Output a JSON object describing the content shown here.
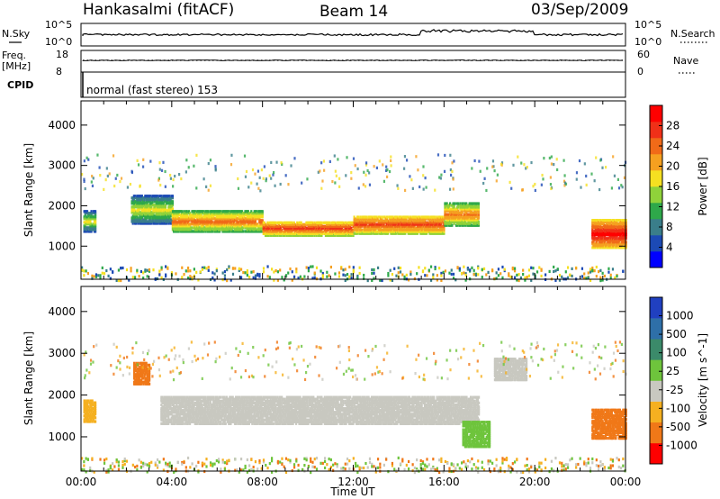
{
  "header": {
    "station": "Hankasalmi (fitACF)",
    "beam": "Beam 14",
    "date": "03/Sep/2009"
  },
  "top_panels": {
    "noise_left_label": "N.Sky",
    "noise_right_label": "N.Search",
    "noise_ticks_left": [
      "10^5",
      "10^0"
    ],
    "noise_ticks_right": [
      "10^5",
      "10^0"
    ],
    "freq_label_1": "Freq.",
    "freq_label_2": "[MHz]",
    "freq_ticks_left": [
      "18",
      "8"
    ],
    "freq_ticks_right": [
      "60",
      "0"
    ],
    "nave_label": "Nave",
    "cpid_label": "CPID",
    "cpid_text": "normal (fast stereo) 153"
  },
  "x_axis": {
    "ticks": [
      "00:00",
      "04:00",
      "08:00",
      "12:00",
      "16:00",
      "20:00",
      "00:00"
    ],
    "title": "Time UT"
  },
  "power_panel": {
    "ylabel": "Slant Range [km]",
    "yticks": [
      "4000",
      "3000",
      "2000",
      "1000"
    ],
    "colorbar_label": "Power [dB]",
    "colorbar_ticks": [
      "28",
      "24",
      "20",
      "16",
      "12",
      "8",
      "4"
    ],
    "colors": [
      "#0000ff",
      "#1c4ab5",
      "#3a7e8a",
      "#2ea84a",
      "#8fd23a",
      "#f5e021",
      "#f5a020",
      "#f06a18",
      "#f03018",
      "#ff0000"
    ]
  },
  "velocity_panel": {
    "ylabel": "Slant Range [km]",
    "yticks": [
      "4000",
      "3000",
      "2000",
      "1000"
    ],
    "colorbar_label": "Velocity [m s^-1]",
    "colorbar_ticks": [
      "1000",
      "500",
      "100",
      "25",
      "-25",
      "-100",
      "-500",
      "-1000"
    ],
    "colors": [
      "#2040c0",
      "#2e6fa8",
      "#3b8a6a",
      "#6ec43c",
      "#c8c8c0",
      "#f5b020",
      "#f07818",
      "#ff0000"
    ]
  },
  "chart_data": {
    "type": "heatmap",
    "x_range_hours": [
      0,
      24
    ],
    "y_range_km": [
      180,
      4600
    ],
    "power_scatter_bands": [
      {
        "t0": 0.1,
        "t1": 0.6,
        "r0": 1400,
        "r1": 1900,
        "db": 14
      },
      {
        "t0": 2.2,
        "t1": 4.0,
        "r0": 1600,
        "r1": 2300,
        "db": 16
      },
      {
        "t0": 4.0,
        "t1": 8.0,
        "r0": 1400,
        "r1": 1900,
        "db": 20
      },
      {
        "t0": 8.0,
        "t1": 12.0,
        "r0": 1300,
        "r1": 1650,
        "db": 24
      },
      {
        "t0": 12.0,
        "t1": 16.0,
        "r0": 1350,
        "r1": 1800,
        "db": 24
      },
      {
        "t0": 16.0,
        "t1": 17.5,
        "r0": 1550,
        "r1": 2100,
        "db": 20
      },
      {
        "t0": 22.5,
        "t1": 24.0,
        "r0": 1000,
        "r1": 1700,
        "db": 28
      }
    ],
    "velocity_scatter_bands": [
      {
        "t0": 0.1,
        "t1": 0.6,
        "r0": 1400,
        "r1": 1900,
        "v": -100
      },
      {
        "t0": 2.3,
        "t1": 3.0,
        "r0": 2300,
        "r1": 2800,
        "v": -300
      },
      {
        "t0": 3.5,
        "t1": 17.5,
        "r0": 1350,
        "r1": 2000,
        "v": 0
      },
      {
        "t0": 18.2,
        "t1": 19.6,
        "r0": 2400,
        "r1": 2900,
        "v": 0
      },
      {
        "t0": 16.8,
        "t1": 18.0,
        "r0": 800,
        "r1": 1400,
        "v": 150
      },
      {
        "t0": 22.5,
        "t1": 24.0,
        "r0": 1000,
        "r1": 1700,
        "v": -300
      }
    ]
  }
}
